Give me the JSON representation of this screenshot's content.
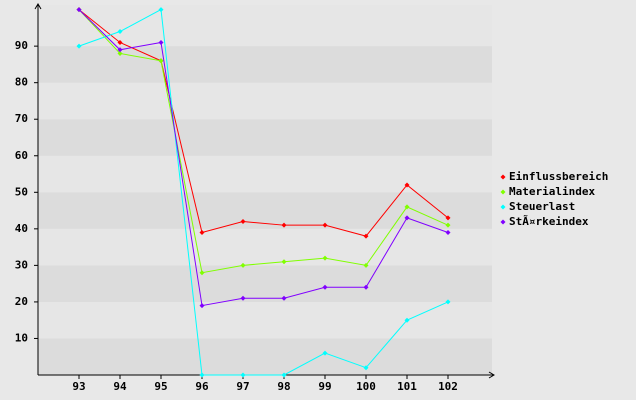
{
  "chart_data": {
    "type": "line",
    "categories": [
      "93",
      "94",
      "95",
      "96",
      "97",
      "98",
      "99",
      "100",
      "101",
      "102"
    ],
    "series": [
      {
        "name": "Einflussbereich",
        "color": "#ff0000",
        "values": [
          100,
          91,
          86,
          39,
          42,
          41,
          41,
          38,
          52,
          43
        ]
      },
      {
        "name": "Materialindex",
        "color": "#80ff00",
        "values": [
          100,
          88,
          86,
          28,
          30,
          31,
          32,
          30,
          46,
          41
        ]
      },
      {
        "name": "Steuerlast",
        "color": "#00ffff",
        "values": [
          90,
          94,
          100,
          0,
          0,
          0,
          6,
          2,
          15,
          20
        ]
      },
      {
        "name": "StÃ¤rkeindex",
        "color": "#8000ff",
        "values": [
          100,
          89,
          91,
          19,
          21,
          21,
          24,
          24,
          43,
          39
        ]
      }
    ],
    "ylim": [
      0,
      100
    ],
    "yticks": [
      10,
      20,
      30,
      40,
      50,
      60,
      70,
      80,
      90
    ],
    "grid": true,
    "legend": "right"
  }
}
